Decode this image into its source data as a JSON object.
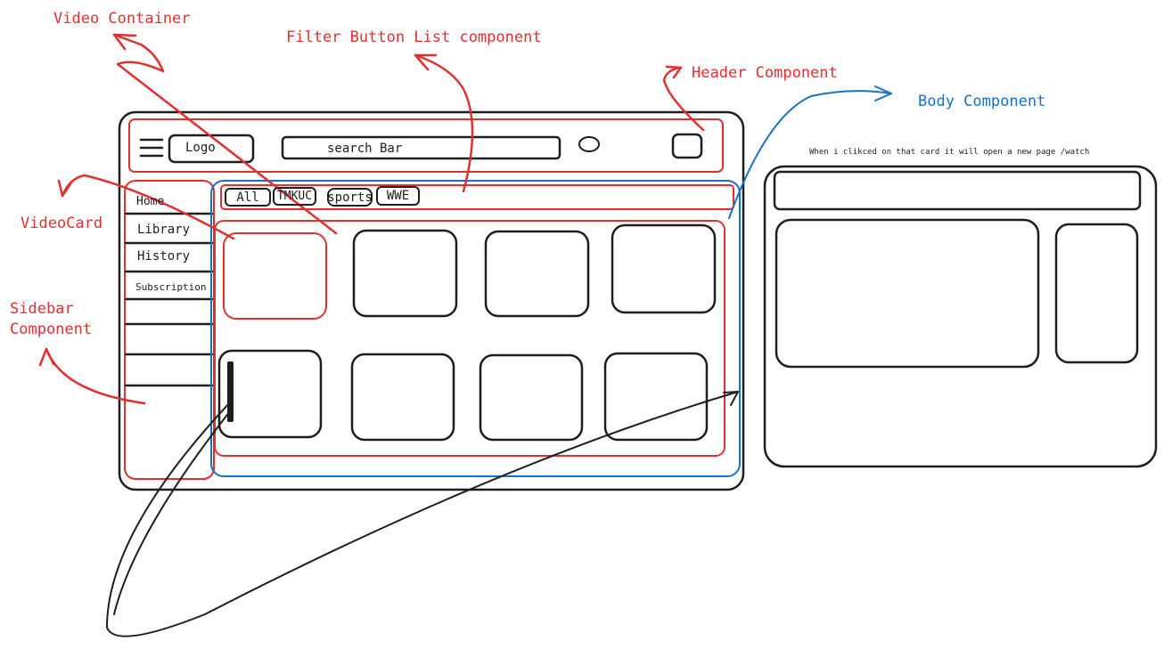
{
  "annotations": {
    "video_container": "Video Container",
    "filter_button_list": "Filter Button List component",
    "header_component": "Header Component",
    "body_component": "Body Component",
    "video_card": "VideoCard",
    "sidebar_line1": "Sidebar",
    "sidebar_line2": "Component",
    "watch_note": "When i clikced on that card it will open a new page /watch"
  },
  "header": {
    "logo": "Logo",
    "search_placeholder": "search Bar"
  },
  "sidebar": {
    "items": [
      {
        "label": "Home"
      },
      {
        "label": "Library"
      },
      {
        "label": "History"
      },
      {
        "label": "Subscription"
      }
    ]
  },
  "filters": [
    "All",
    "TMKUC",
    "sports",
    "WWE"
  ],
  "colors": {
    "annotation_red": "#e03131",
    "annotation_blue": "#1971c2",
    "ink": "#1e1e1e",
    "background": "#ffffff"
  },
  "icons": [
    "hamburger-menu-icon",
    "user-avatar-icon",
    "notification-icon"
  ]
}
